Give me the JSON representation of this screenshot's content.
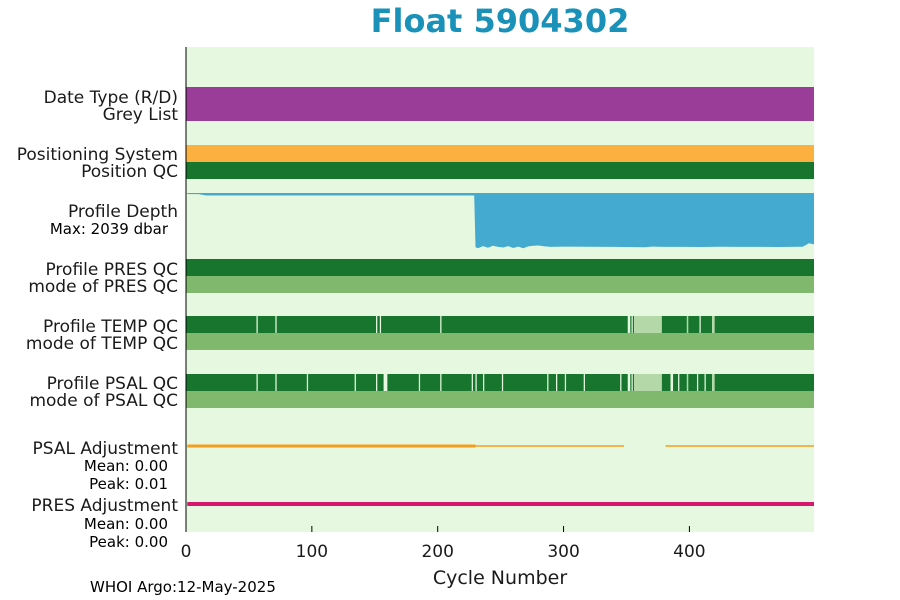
{
  "title": "Float 5904302",
  "footer": "WHOI Argo:12-May-2025",
  "colors": {
    "background": "#e6f9e0",
    "title": "#1a91b8",
    "data_type": "#993d99",
    "positioning": "#fbb040",
    "qc_good": "#17752d",
    "qc_mode": "#80b86e",
    "qc_light": "#b5d8a8",
    "profile_depth": "#44aacf",
    "psal_adjustment": "#f59d1a",
    "pres_adjustment": "#d6196e"
  },
  "chart_data": {
    "type": "timeline",
    "xlabel": "Cycle Number",
    "xlim": [
      0,
      499
    ],
    "xticks": [
      0,
      100,
      200,
      300,
      400
    ],
    "rows": [
      {
        "key": "data_type",
        "label": "Date Type (R/D)",
        "color_key": "data_type"
      },
      {
        "key": "grey_list",
        "label": "Grey List",
        "color_key": "data_type"
      },
      {
        "key": "positioning",
        "label": "Positioning System",
        "color_key": "positioning"
      },
      {
        "key": "position_qc",
        "label": "Position QC",
        "color_key": "qc_good"
      },
      {
        "key": "profile_depth",
        "label": "Profile Depth",
        "sublabel": "Max: 2039 dbar",
        "color_key": "profile_depth"
      },
      {
        "key": "pres_qc",
        "label": "Profile PRES QC",
        "color_key": "qc_good"
      },
      {
        "key": "pres_mode",
        "label": "mode of PRES QC",
        "color_key": "qc_mode"
      },
      {
        "key": "temp_qc",
        "label": "Profile TEMP QC",
        "color_key": "qc_good"
      },
      {
        "key": "temp_mode",
        "label": "mode of TEMP QC",
        "color_key": "qc_mode"
      },
      {
        "key": "psal_qc",
        "label": "Profile PSAL QC",
        "color_key": "qc_good"
      },
      {
        "key": "psal_mode",
        "label": "mode of PSAL QC",
        "color_key": "qc_mode"
      },
      {
        "key": "psal_adj",
        "label": "PSAL Adjustment",
        "sublabels": [
          "Mean: 0.00",
          "Peak: 0.01"
        ],
        "color_key": "psal_adjustment"
      },
      {
        "key": "pres_adj",
        "label": "PRES Adjustment",
        "sublabels": [
          "Mean: 0.00",
          "Peak: 0.00"
        ],
        "color_key": "pres_adjustment"
      }
    ],
    "profile_depth": {
      "max_dbar": 2039,
      "points": [
        [
          1,
          2000
        ],
        [
          10,
          2000
        ],
        [
          16,
          1950
        ],
        [
          229,
          1950
        ],
        [
          230,
          100
        ],
        [
          232,
          60
        ],
        [
          236,
          140
        ],
        [
          240,
          80
        ],
        [
          244,
          150
        ],
        [
          248,
          110
        ],
        [
          252,
          90
        ],
        [
          256,
          140
        ],
        [
          260,
          70
        ],
        [
          264,
          120
        ],
        [
          268,
          60
        ],
        [
          272,
          130
        ],
        [
          276,
          150
        ],
        [
          280,
          160
        ],
        [
          285,
          130
        ],
        [
          290,
          110
        ],
        [
          300,
          120
        ],
        [
          320,
          115
        ],
        [
          340,
          110
        ],
        [
          355,
          105
        ],
        [
          365,
          100
        ],
        [
          370,
          120
        ],
        [
          380,
          110
        ],
        [
          395,
          112
        ],
        [
          410,
          108
        ],
        [
          425,
          115
        ],
        [
          440,
          110
        ],
        [
          455,
          112
        ],
        [
          470,
          108
        ],
        [
          490,
          115
        ],
        [
          495,
          240
        ],
        [
          499,
          200
        ]
      ]
    },
    "temp_qc_gaps": [
      [
        56,
        57
      ],
      [
        71,
        72
      ],
      [
        151,
        152
      ],
      [
        154,
        155
      ],
      [
        202,
        203
      ],
      [
        351,
        353
      ],
      [
        354,
        355
      ],
      [
        356,
        378
      ],
      [
        398,
        399
      ],
      [
        408,
        409
      ],
      [
        418,
        420
      ]
    ],
    "temp_qc_light": [
      [
        356,
        378
      ],
      [
        398,
        399
      ],
      [
        418,
        420
      ]
    ],
    "psal_qc_gaps": [
      [
        56,
        57
      ],
      [
        71,
        72
      ],
      [
        96,
        97
      ],
      [
        134,
        135
      ],
      [
        151,
        152
      ],
      [
        157,
        160
      ],
      [
        185,
        186
      ],
      [
        202,
        203
      ],
      [
        227,
        228
      ],
      [
        230,
        231
      ],
      [
        236,
        237
      ],
      [
        251,
        252
      ],
      [
        287,
        288
      ],
      [
        294,
        295
      ],
      [
        301,
        302
      ],
      [
        316,
        317
      ],
      [
        345,
        346
      ],
      [
        351,
        353
      ],
      [
        354,
        355
      ],
      [
        356,
        378
      ],
      [
        385,
        387
      ],
      [
        391,
        392
      ],
      [
        398,
        399
      ],
      [
        406,
        407
      ],
      [
        412,
        413
      ],
      [
        418,
        420
      ]
    ],
    "psal_qc_light": [
      [
        356,
        378
      ],
      [
        398,
        399
      ],
      [
        418,
        420
      ]
    ],
    "psal_adjustment_segments": [
      [
        1,
        230,
        "thick"
      ],
      [
        230,
        348,
        "thin"
      ],
      [
        381,
        499,
        "thin"
      ]
    ],
    "pres_adjustment_segments": [
      [
        1,
        499,
        "thick"
      ]
    ]
  }
}
